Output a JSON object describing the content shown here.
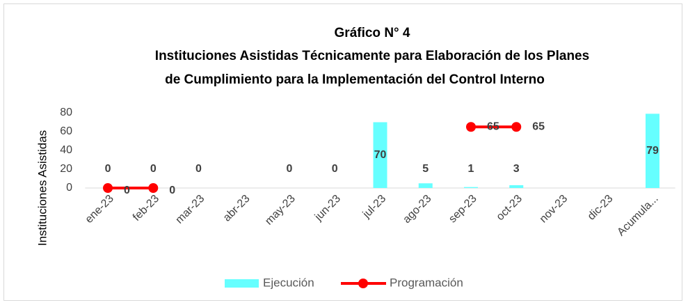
{
  "chart_data": {
    "type": "combo",
    "title": [
      "Gráfico N° 4",
      "Instituciones Asistidas Técnicamente para Elaboración de los Planes",
      "de Cumplimiento para la Implementación del Control Interno"
    ],
    "y_label": "Instituciones Asistidas",
    "categories": [
      "ene-23",
      "feb-23",
      "mar-23",
      "abr-23",
      "may-23",
      "jun-23",
      "jul-23",
      "ago-23",
      "sep-23",
      "oct-23",
      "nov-23",
      "dic-23",
      "Acumula..."
    ],
    "series": [
      {
        "name": "Ejecución",
        "type": "bar",
        "color": "#66ffff",
        "values": [
          0,
          0,
          0,
          null,
          0,
          0,
          70,
          5,
          1,
          3,
          null,
          null,
          79
        ]
      },
      {
        "name": "Programación",
        "type": "line",
        "color": "#ff0000",
        "values": [
          0,
          0,
          null,
          null,
          null,
          null,
          null,
          null,
          65,
          65,
          null,
          null,
          null
        ]
      }
    ],
    "ylim": [
      0,
      80
    ],
    "yticks": [
      0,
      20,
      40,
      60,
      80
    ],
    "grid": false,
    "legend": "bottom"
  }
}
